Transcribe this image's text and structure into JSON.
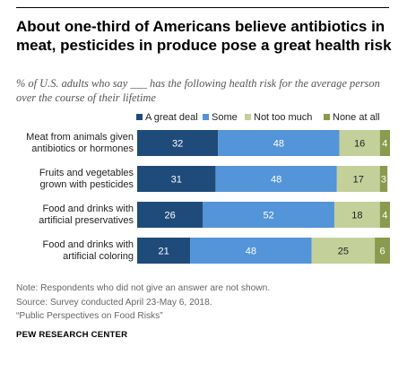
{
  "header": {
    "title": "About one-third of Americans believe antibiotics in meat, pesticides in produce pose a great health risk",
    "subtitle": "% of U.S. adults who say ___ has the following health risk for the average person over the course of their lifetime"
  },
  "chart_data": {
    "type": "bar",
    "orientation": "horizontal",
    "stacked": true,
    "categories": [
      [
        "Meat from animals given",
        "antibiotics or hormones"
      ],
      [
        "Fruits and vegetables",
        "grown with pesticides"
      ],
      [
        "Food and drinks with",
        "artificial preservatives"
      ],
      [
        "Food and drinks with",
        "artificial coloring"
      ]
    ],
    "series": [
      {
        "name": "A great deal",
        "color": "#1f4b7a",
        "label_color": "#ffffff",
        "values": [
          32,
          31,
          26,
          21
        ]
      },
      {
        "name": "Some",
        "color": "#5494d8",
        "label_color": "#ffffff",
        "values": [
          48,
          48,
          52,
          48
        ]
      },
      {
        "name": "Not too much",
        "color": "#c4d09a",
        "label_color": "#222222",
        "values": [
          16,
          17,
          18,
          25
        ]
      },
      {
        "name": "None at all",
        "color": "#8a9a4e",
        "label_color": "#ffffff",
        "values": [
          4,
          3,
          4,
          6
        ]
      }
    ],
    "xlim": [
      0,
      100
    ],
    "legend_position": "top",
    "grid": false
  },
  "footer": {
    "note": "Note: Respondents who did not give an answer are not shown.",
    "source": "Source: Survey conducted April 23-May 6, 2018.",
    "report": "“Public Perspectives on Food Risks”",
    "org": "PEW RESEARCH CENTER"
  }
}
